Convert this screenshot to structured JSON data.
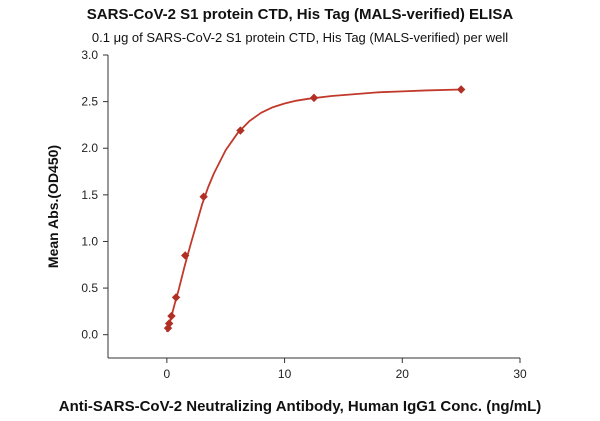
{
  "chart_data": {
    "type": "scatter",
    "title": "SARS-CoV-2 S1 protein CTD, His Tag (MALS-verified) ELISA",
    "subtitle": "0.1 μg of SARS-CoV-2 S1 protein CTD, His Tag (MALS-verified) per well",
    "xlabel": "Anti-SARS-CoV-2 Neutralizing Antibody, Human IgG1 Conc. (ng/mL)",
    "ylabel": "Mean Abs.(OD450)",
    "xlim": [
      -5,
      30
    ],
    "ylim": [
      -0.25,
      3.0
    ],
    "x_ticks": [
      "0",
      "10",
      "20",
      "30"
    ],
    "y_ticks": [
      "0.0",
      "0.5",
      "1.0",
      "1.5",
      "2.0",
      "2.5",
      "3.0"
    ],
    "grid": false,
    "legend": "none",
    "points": [
      {
        "x": 0.098,
        "y": 0.07
      },
      {
        "x": 0.195,
        "y": 0.12
      },
      {
        "x": 0.39,
        "y": 0.2
      },
      {
        "x": 0.78,
        "y": 0.4
      },
      {
        "x": 1.56,
        "y": 0.85
      },
      {
        "x": 3.125,
        "y": 1.48
      },
      {
        "x": 6.25,
        "y": 2.19
      },
      {
        "x": 12.5,
        "y": 2.54
      },
      {
        "x": 25,
        "y": 2.63
      }
    ],
    "curve": {
      "x": [
        0,
        0.25,
        0.5,
        0.75,
        1,
        1.5,
        2,
        2.5,
        3,
        3.5,
        4,
        5,
        6,
        7,
        8,
        9,
        10,
        11,
        12,
        14,
        16,
        18,
        20,
        22,
        25
      ],
      "y": [
        0.03,
        0.13,
        0.25,
        0.37,
        0.48,
        0.73,
        0.96,
        1.18,
        1.4,
        1.58,
        1.73,
        1.98,
        2.16,
        2.29,
        2.38,
        2.44,
        2.48,
        2.51,
        2.53,
        2.56,
        2.58,
        2.6,
        2.61,
        2.62,
        2.63
      ]
    },
    "colors": {
      "marker": "#b03025",
      "curve": "#c0392b",
      "axis": "#333333"
    }
  }
}
